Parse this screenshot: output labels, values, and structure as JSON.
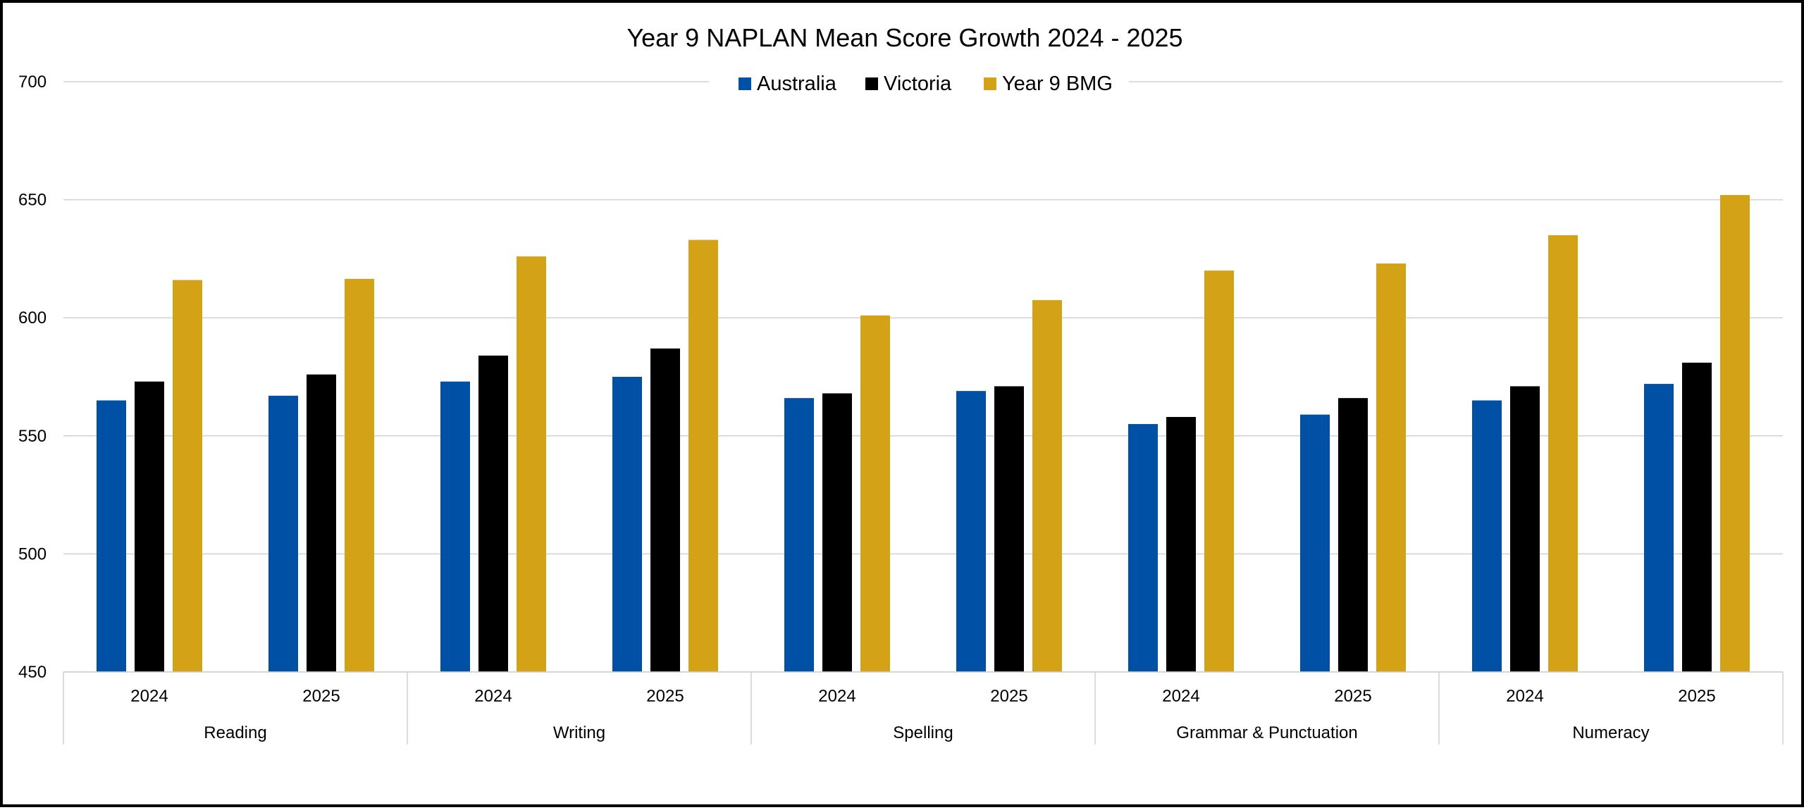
{
  "chart_data": {
    "type": "bar",
    "title": "Year 9 NAPLAN Mean Score Growth 2024 - 2025",
    "xlabel": "",
    "ylabel": "",
    "ylim": [
      450,
      700
    ],
    "y_ticks": [
      "450",
      "500",
      "550",
      "600",
      "650",
      "700"
    ],
    "grid": true,
    "legend_position": "top-center",
    "groups": [
      {
        "name": "Reading",
        "years": [
          "2024",
          "2025"
        ]
      },
      {
        "name": "Writing",
        "years": [
          "2024",
          "2025"
        ]
      },
      {
        "name": "Spelling",
        "years": [
          "2024",
          "2025"
        ]
      },
      {
        "name": "Grammar & Punctuation",
        "years": [
          "2024",
          "2025"
        ]
      },
      {
        "name": "Numeracy",
        "years": [
          "2024",
          "2025"
        ]
      }
    ],
    "categories": [
      "Reading 2024",
      "Reading 2025",
      "Writing 2024",
      "Writing 2025",
      "Spelling 2024",
      "Spelling 2025",
      "Grammar & Punctuation 2024",
      "Grammar & Punctuation 2025",
      "Numeracy 2024",
      "Numeracy 2025"
    ],
    "series": [
      {
        "name": "Australia",
        "color": "#0050a5",
        "values": [
          565,
          567,
          573,
          575,
          566,
          569,
          555,
          559,
          565,
          572
        ]
      },
      {
        "name": "Victoria",
        "color": "#000000",
        "values": [
          573,
          576,
          584,
          587,
          568,
          571,
          558,
          566,
          571,
          581
        ]
      },
      {
        "name": "Year 9 BMG",
        "color": "#d4a216",
        "values": [
          616,
          616.5,
          626,
          633,
          601,
          607.5,
          620,
          623,
          635,
          652
        ]
      }
    ]
  }
}
